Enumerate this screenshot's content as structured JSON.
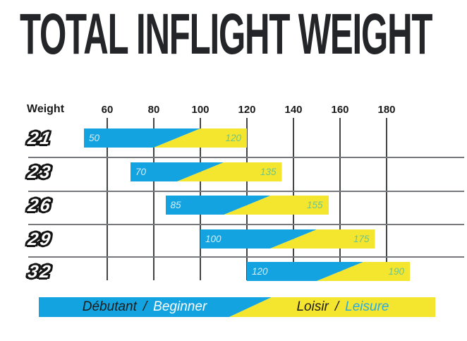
{
  "title": "TOTAL INFLIGHT WEIGHT",
  "colors": {
    "blue": "#12a3e0",
    "yellow": "#f4e52f",
    "title_text": "#232528",
    "min_label": "rgba(255,255,255,0.82)",
    "max_label": "#6fc487",
    "legend_leisure_text": "#2aabe2",
    "legend_dark_text": "#1c1c1c"
  },
  "chart_data": {
    "type": "bar",
    "subtype": "horizontal-range-bars",
    "title": "TOTAL INFLIGHT WEIGHT",
    "axis": {
      "label": "Weight",
      "ticks": [
        60,
        80,
        100,
        120,
        140,
        160,
        180
      ],
      "range": [
        50,
        195
      ],
      "grid": true
    },
    "rows": [
      {
        "size": "21",
        "min": 50,
        "max": 120,
        "blend_start": 80,
        "blend_end": 100
      },
      {
        "size": "23",
        "min": 70,
        "max": 135,
        "blend_start": 90,
        "blend_end": 110
      },
      {
        "size": "26",
        "min": 85,
        "max": 155,
        "blend_start": 110,
        "blend_end": 130
      },
      {
        "size": "29",
        "min": 100,
        "max": 175,
        "blend_start": 130,
        "blend_end": 150
      },
      {
        "size": "32",
        "min": 120,
        "max": 190,
        "blend_start": 150,
        "blend_end": 170
      }
    ],
    "legend": {
      "position": "bottom",
      "entries": [
        {
          "name": "beginner",
          "color": "#12a3e0",
          "label_fr": "Débutant",
          "separator": "/",
          "label_en": "Beginner"
        },
        {
          "name": "leisure",
          "color": "#f4e52f",
          "label_fr": "Loisir",
          "separator": "/",
          "label_en": "Leisure"
        }
      ]
    }
  }
}
